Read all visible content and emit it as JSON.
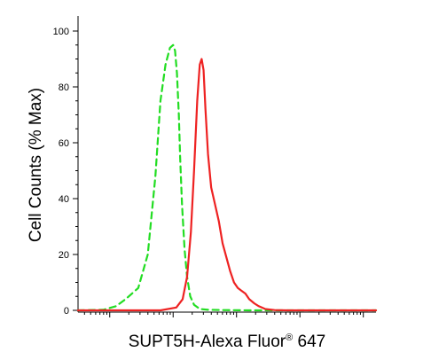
{
  "chart_data": {
    "type": "line",
    "title": "",
    "xlabel": "SUPT5H-Alexa Fluor",
    "xlabel_sup": "®",
    "xlabel_suffix": " 647",
    "ylabel": "Cell Counts (% Max)",
    "yscale": "linear",
    "xscale": "log",
    "ylim": [
      0,
      100
    ],
    "xlim": [
      -1.5,
      3.2
    ],
    "y_ticks": [
      0,
      20,
      40,
      60,
      80,
      100
    ],
    "y_tick_labels": [
      "0",
      "20",
      "40",
      "60",
      "80",
      "100"
    ],
    "grid": false,
    "legend": "none",
    "series": [
      {
        "color": "#22dd22",
        "dash": "dashed",
        "x": [
          -1.5,
          -1.1,
          -0.9,
          -0.75,
          -0.55,
          -0.4,
          -0.28,
          -0.2,
          -0.12,
          -0.05,
          0.0,
          0.03,
          0.06,
          0.09,
          0.11,
          0.14,
          0.18,
          0.22,
          0.27,
          0.33,
          0.42,
          0.55,
          0.8,
          1.2,
          2.0,
          3.2
        ],
        "y": [
          0,
          0.2,
          1.5,
          4,
          8,
          20,
          48,
          75,
          88,
          94,
          95,
          93,
          85,
          70,
          55,
          38,
          22,
          12,
          5,
          2,
          0.5,
          0.2,
          0.1,
          0,
          0,
          0
        ]
      },
      {
        "color": "#ee2222",
        "dash": "solid",
        "x": [
          -1.5,
          -0.2,
          0.05,
          0.15,
          0.22,
          0.28,
          0.33,
          0.38,
          0.42,
          0.45,
          0.48,
          0.51,
          0.55,
          0.6,
          0.66,
          0.72,
          0.78,
          0.84,
          0.9,
          0.96,
          1.02,
          1.08,
          1.14,
          1.2,
          1.28,
          1.35,
          1.45,
          1.6,
          1.8,
          2.2,
          3.2
        ],
        "y": [
          0,
          0,
          1,
          4,
          12,
          28,
          50,
          75,
          88,
          90,
          86,
          72,
          56,
          44,
          38,
          32,
          24,
          19,
          14,
          10,
          8,
          7,
          6,
          4,
          2.5,
          1.5,
          0.5,
          0.1,
          0,
          0,
          0
        ]
      }
    ]
  }
}
